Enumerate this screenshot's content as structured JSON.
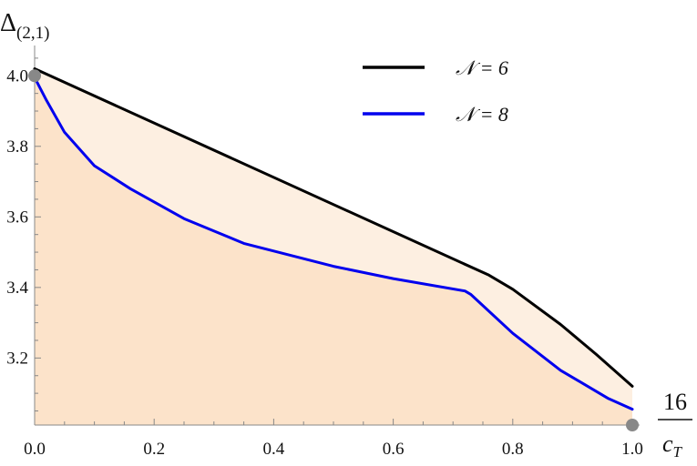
{
  "chart_data": {
    "type": "line",
    "xlim": [
      0.0,
      1.0
    ],
    "ylim": [
      3.01,
      4.06
    ],
    "xticks": [
      "0.0",
      "0.2",
      "0.4",
      "0.6",
      "0.8",
      "1.0"
    ],
    "yticks": [
      "3.2",
      "3.4",
      "3.6",
      "3.8",
      "4.0"
    ],
    "xlabel": {
      "numerator": "16",
      "denominator": "c",
      "sub": "T"
    },
    "ylabel": {
      "base": "Δ",
      "sub": "(2,1)"
    },
    "grid": false,
    "legend_position": "top-right",
    "series": [
      {
        "name": "𝒩 = 6",
        "color": "#000000",
        "fill": "#fdefe1",
        "points": [
          [
            0.0,
            4.02
          ],
          [
            0.76,
            3.435
          ],
          [
            0.8,
            3.395
          ],
          [
            0.88,
            3.295
          ],
          [
            0.94,
            3.21
          ],
          [
            1.0,
            3.12
          ]
        ]
      },
      {
        "name": "𝒩 = 8",
        "color": "#0000ee",
        "fill": "#fce3ca",
        "points": [
          [
            0.0,
            3.995
          ],
          [
            0.02,
            3.93
          ],
          [
            0.05,
            3.84
          ],
          [
            0.1,
            3.745
          ],
          [
            0.16,
            3.68
          ],
          [
            0.25,
            3.595
          ],
          [
            0.35,
            3.525
          ],
          [
            0.5,
            3.46
          ],
          [
            0.6,
            3.425
          ],
          [
            0.72,
            3.39
          ],
          [
            0.73,
            3.38
          ],
          [
            0.8,
            3.27
          ],
          [
            0.88,
            3.165
          ],
          [
            0.96,
            3.085
          ],
          [
            1.0,
            3.055
          ]
        ]
      }
    ],
    "markers": [
      {
        "x": 0.0,
        "y": 4.0,
        "color": "#888888"
      },
      {
        "x": 1.0,
        "y": 3.01,
        "color": "#888888"
      }
    ]
  }
}
